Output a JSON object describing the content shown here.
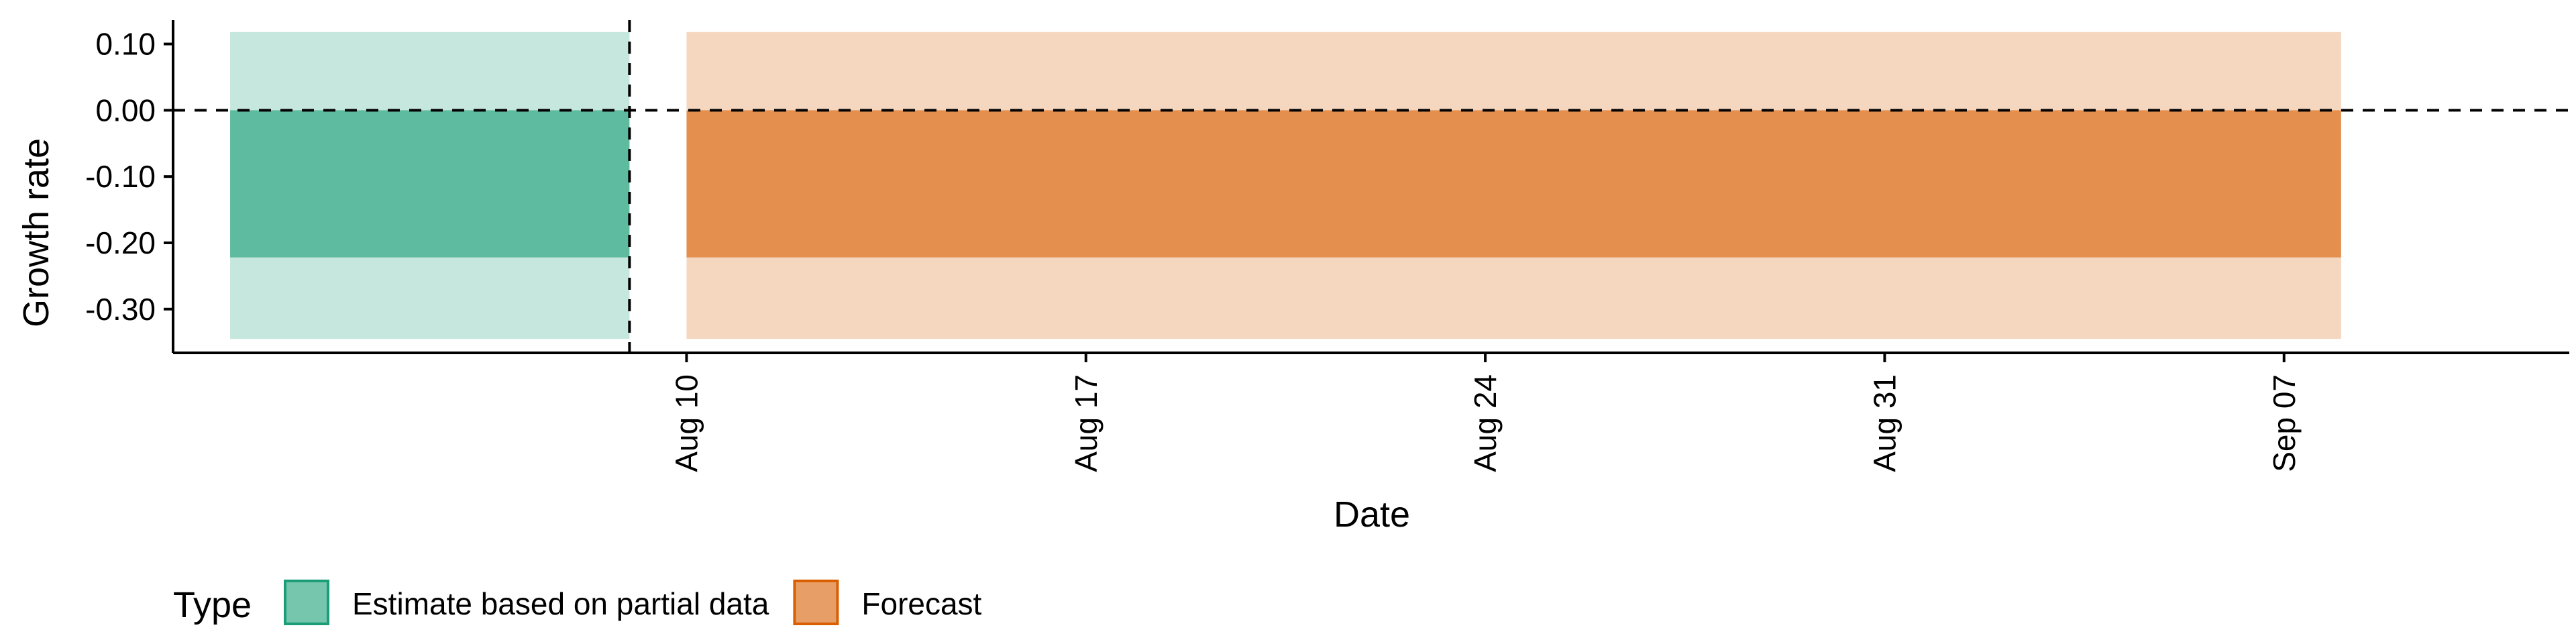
{
  "chart_data": {
    "type": "area",
    "title": "",
    "xlabel": "Date",
    "ylabel": "Growth rate",
    "y_ticks": [
      0.1,
      0.0,
      -0.1,
      -0.2,
      -0.3
    ],
    "y_tick_labels": [
      "0.10",
      "0.00",
      "-0.10",
      "-0.20",
      "-0.30"
    ],
    "ylim": [
      -0.366,
      0.136
    ],
    "x_ticks": [
      "2020-08-10",
      "2020-08-17",
      "2020-08-24",
      "2020-08-31",
      "2020-09-07"
    ],
    "x_tick_labels": [
      "Aug 10",
      "Aug 17",
      "Aug 24",
      "Aug 31",
      "Sep 07"
    ],
    "xlim": [
      "2020-08-01",
      "2020-09-12"
    ],
    "reference_lines": {
      "horizontal_y": 0.0,
      "vertical_x": "2020-08-09"
    },
    "legend": {
      "title": "Type",
      "position": "bottom"
    },
    "series": [
      {
        "name": "Estimate based on partial data",
        "color": "#1b9e77",
        "x_start": "2020-08-02",
        "x_end": "2020-08-09",
        "outer_interval": [
          -0.345,
          0.118
        ],
        "inner_interval": [
          -0.222,
          0.0
        ]
      },
      {
        "name": "Forecast",
        "color": "#d95f02",
        "x_start": "2020-08-10",
        "x_end": "2020-09-08",
        "outer_interval": [
          -0.345,
          0.118
        ],
        "inner_interval": [
          -0.222,
          0.0
        ]
      }
    ]
  }
}
